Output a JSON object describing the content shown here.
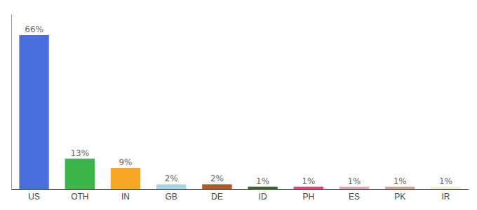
{
  "chart_data": {
    "type": "bar",
    "categories": [
      "US",
      "OTH",
      "IN",
      "GB",
      "DE",
      "ID",
      "PH",
      "ES",
      "PK",
      "IR"
    ],
    "values": [
      66,
      13,
      9,
      2,
      2,
      1,
      1,
      1,
      1,
      1
    ],
    "value_labels": [
      "66%",
      "13%",
      "9%",
      "2%",
      "2%",
      "1%",
      "1%",
      "1%",
      "1%",
      "1%"
    ],
    "colors": [
      "#4a6fdc",
      "#3bb54a",
      "#f5a623",
      "#a8d4e6",
      "#b05a2a",
      "#2a6e2a",
      "#e83e7a",
      "#e8a0b0",
      "#d4a090",
      "#f0f0c8"
    ],
    "ylim": [
      0,
      75
    ],
    "data_labels": true,
    "tick_labels": "x",
    "grid": false
  }
}
